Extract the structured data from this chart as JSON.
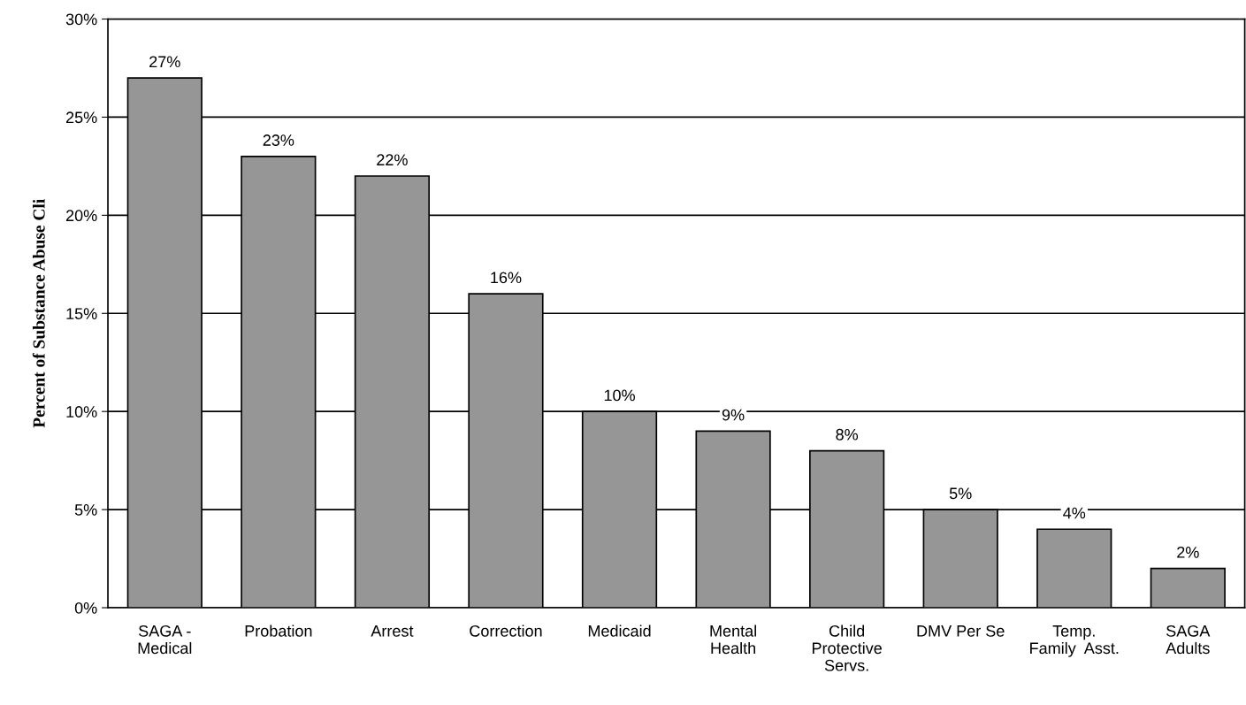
{
  "chart_data": {
    "type": "bar",
    "ylabel": "Percent of Substance Abuse Cli",
    "categories": [
      "SAGA -\nMedical",
      "Probation",
      "Arrest",
      "Correction",
      "Medicaid",
      "Mental\nHealth",
      "Child\nProtective\nServs.",
      "DMV Per Se",
      "Temp.\nFamily  Asst.",
      "SAGA\nAdults"
    ],
    "values": [
      27,
      23,
      22,
      16,
      10,
      9,
      8,
      5,
      4,
      2
    ],
    "value_labels": [
      "27%",
      "23%",
      "22%",
      "16%",
      "10%",
      "9%",
      "8%",
      "5%",
      "4%",
      "2%"
    ],
    "color": "#969696",
    "ylim": [
      0,
      30
    ],
    "yticks": [
      {
        "value": 0,
        "label": "0%"
      },
      {
        "value": 5,
        "label": "5%"
      },
      {
        "value": 10,
        "label": "10%"
      },
      {
        "value": 15,
        "label": "15%"
      },
      {
        "value": 20,
        "label": "20%"
      },
      {
        "value": 25,
        "label": "25%"
      },
      {
        "value": 30,
        "label": "30%"
      }
    ],
    "grid": "y",
    "legend": false
  }
}
